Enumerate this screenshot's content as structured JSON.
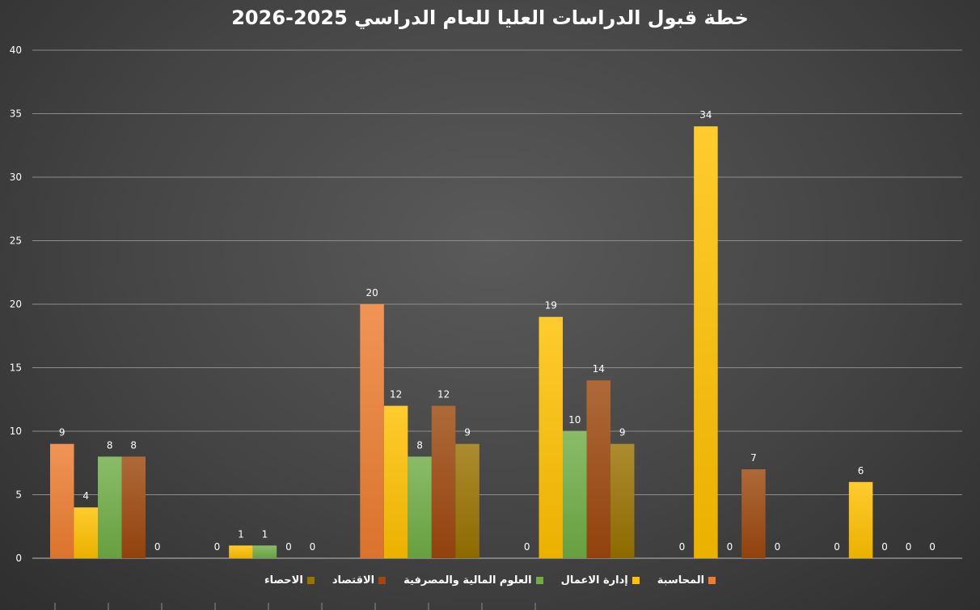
{
  "chart_data": {
    "type": "bar",
    "title": "خطة قبول الدراسات العليا للعام الدراسي 2025-2026",
    "xlabel": "",
    "ylabel": "",
    "ylim": [
      0,
      40
    ],
    "yticks": [
      0,
      5,
      10,
      15,
      20,
      25,
      30,
      35,
      40
    ],
    "categories": [
      "",
      "",
      "",
      "",
      "",
      ""
    ],
    "grid": true,
    "legend_position": "bottom",
    "series": [
      {
        "name": "المحاسبة",
        "color": "#ED7D31",
        "values": [
          9,
          0,
          20,
          0,
          0,
          0
        ]
      },
      {
        "name": "إدارة  الاعمال",
        "color": "#FFC000",
        "values": [
          4,
          1,
          12,
          19,
          34,
          6
        ]
      },
      {
        "name": "العلوم المالية والمصرفية",
        "color": "#70AD47",
        "values": [
          8,
          1,
          8,
          10,
          0,
          0
        ]
      },
      {
        "name": "الاقتصاد",
        "color": "#9E480E",
        "values": [
          8,
          0,
          12,
          14,
          7,
          0
        ]
      },
      {
        "name": "الاحصاء",
        "color": "#997300",
        "values": [
          0,
          0,
          9,
          9,
          0,
          0
        ]
      }
    ]
  }
}
